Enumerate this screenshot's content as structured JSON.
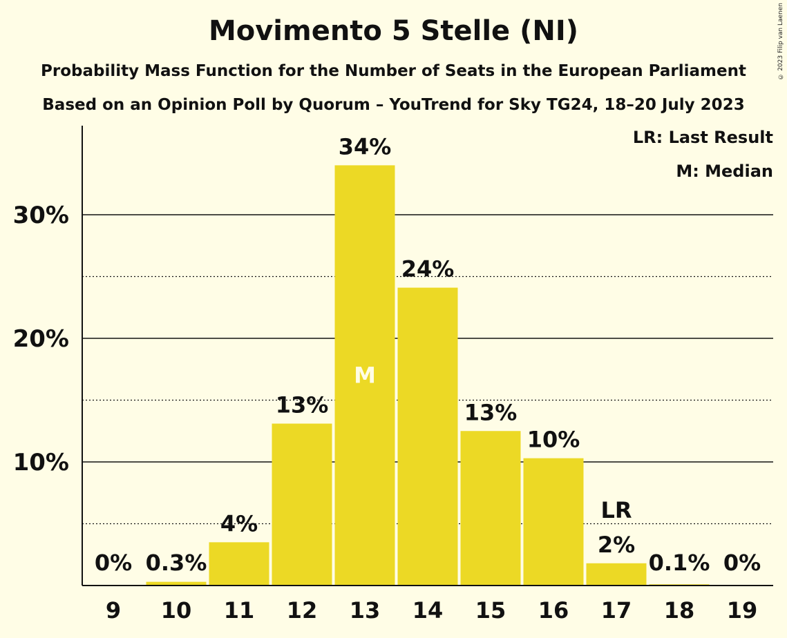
{
  "title": "Movimento 5 Stelle (NI)",
  "subtitle1": "Probability Mass Function for the Number of Seats in the European Parliament",
  "subtitle2": "Based on an Opinion Poll by Quorum – YouTrend for Sky TG24, 18–20 July 2023",
  "copyright": "© 2023 Filip van Laenen",
  "legend": {
    "last_result": "LR: Last Result",
    "median": "M: Median"
  },
  "colors": {
    "bar": "#ecd925",
    "background": "#fffde6",
    "text": "#111111"
  },
  "chart_data": {
    "type": "bar",
    "categories": [
      "9",
      "10",
      "11",
      "12",
      "13",
      "14",
      "15",
      "16",
      "17",
      "18",
      "19"
    ],
    "values": [
      0,
      0.3,
      3.5,
      13.1,
      34.0,
      24.1,
      12.5,
      10.3,
      1.8,
      0.1,
      0
    ],
    "data_labels": [
      "0%",
      "0.3%",
      "4%",
      "13%",
      "34%",
      "24%",
      "13%",
      "10%",
      "2%",
      "0.1%",
      "0%"
    ],
    "y_ticks": [
      10,
      20,
      30
    ],
    "y_tick_labels": [
      "10%",
      "20%",
      "30%"
    ],
    "minor_gridlines": [
      5,
      15,
      25
    ],
    "ylim": [
      0,
      37
    ],
    "median_category": "13",
    "median_marker": "M",
    "last_result_category": "17",
    "last_result_marker": "LR",
    "grid": true,
    "legend_position": "top-right"
  }
}
